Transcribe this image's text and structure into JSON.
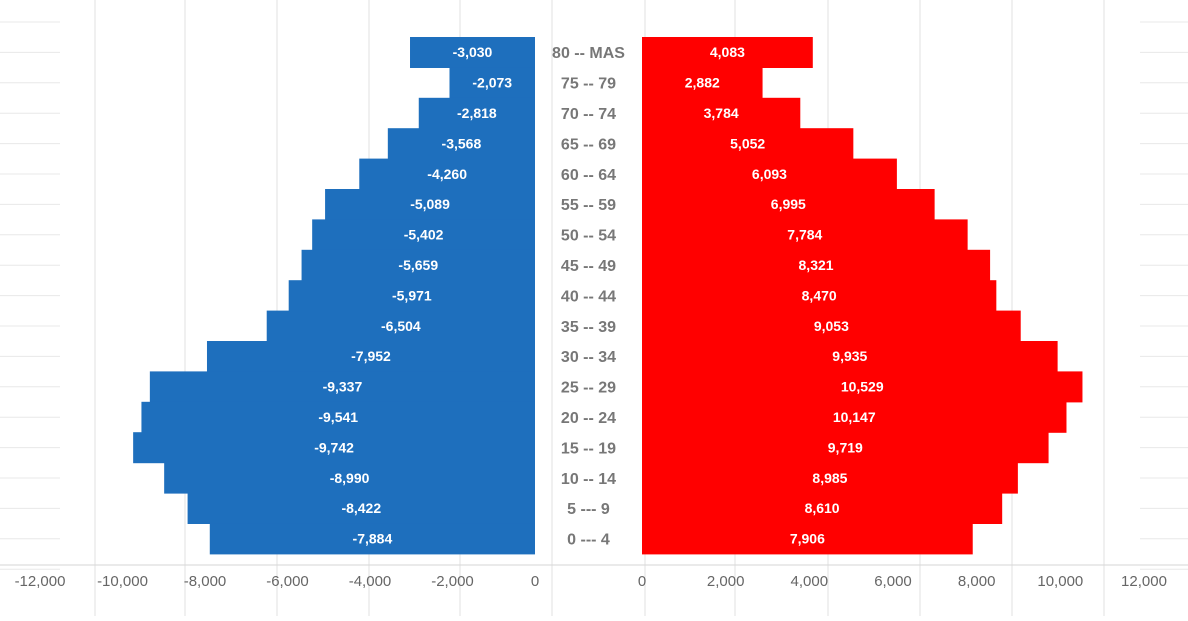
{
  "chart_data": {
    "type": "bar",
    "orientation": "horizontal",
    "style": "population-pyramid",
    "title": "",
    "xlabel": "",
    "ylabel": "",
    "grid": true,
    "legend": "none",
    "categories": [
      "80 -- MAS",
      "75 -- 79",
      "70 -- 74",
      "65 -- 69",
      "60 -- 64",
      "55 -- 59",
      "50 -- 54",
      "45 -- 49",
      "40 -- 44",
      "35 -- 39",
      "30 -- 34",
      "25 -- 29",
      "20 -- 24",
      "15 -- 19",
      "10 -- 14",
      "5 --- 9",
      "0 --- 4"
    ],
    "series": [
      {
        "color": "#1e6fbd",
        "values": [
          -3030,
          -2073,
          -2818,
          -3568,
          -4260,
          -5089,
          -5402,
          -5659,
          -5971,
          -6504,
          -7952,
          -9337,
          -9541,
          -9742,
          -8990,
          -8422,
          -7884
        ],
        "labels": [
          "-3,030",
          "-2,073",
          "-2,818",
          "-3,568",
          "-4,260",
          "-5,089",
          "-5,402",
          "-5,659",
          "-5,971",
          "-6,504",
          "-7,952",
          "-9,337",
          "-9,541",
          "-9,742",
          "-8,990",
          "-8,422",
          "-7,884"
        ]
      },
      {
        "color": "#ff0000",
        "values": [
          4083,
          2882,
          3784,
          5052,
          6093,
          6995,
          7784,
          8321,
          8470,
          9053,
          9935,
          10529,
          10147,
          9719,
          8985,
          8610,
          7906
        ],
        "labels": [
          "4,083",
          "2,882",
          "3,784",
          "5,052",
          "6,093",
          "6,995",
          "7,784",
          "8,321",
          "8,470",
          "9,053",
          "9,935",
          "10,529",
          "10,147",
          "9,719",
          "8,985",
          "8,610",
          "7,906"
        ]
      }
    ],
    "left_axis": {
      "range": [
        -12000,
        0
      ],
      "ticks": [
        -12000,
        -10000,
        -8000,
        -6000,
        -4000,
        -2000,
        0
      ],
      "tick_labels": [
        "-12,000",
        "-10,000",
        "-8,000",
        "-6,000",
        "-4,000",
        "-2,000",
        "0"
      ]
    },
    "right_axis": {
      "range": [
        0,
        12000
      ],
      "ticks": [
        0,
        2000,
        4000,
        6000,
        8000,
        10000,
        12000
      ],
      "tick_labels": [
        "0",
        "2,000",
        "4,000",
        "6,000",
        "8,000",
        "10,000",
        "12,000"
      ]
    }
  }
}
